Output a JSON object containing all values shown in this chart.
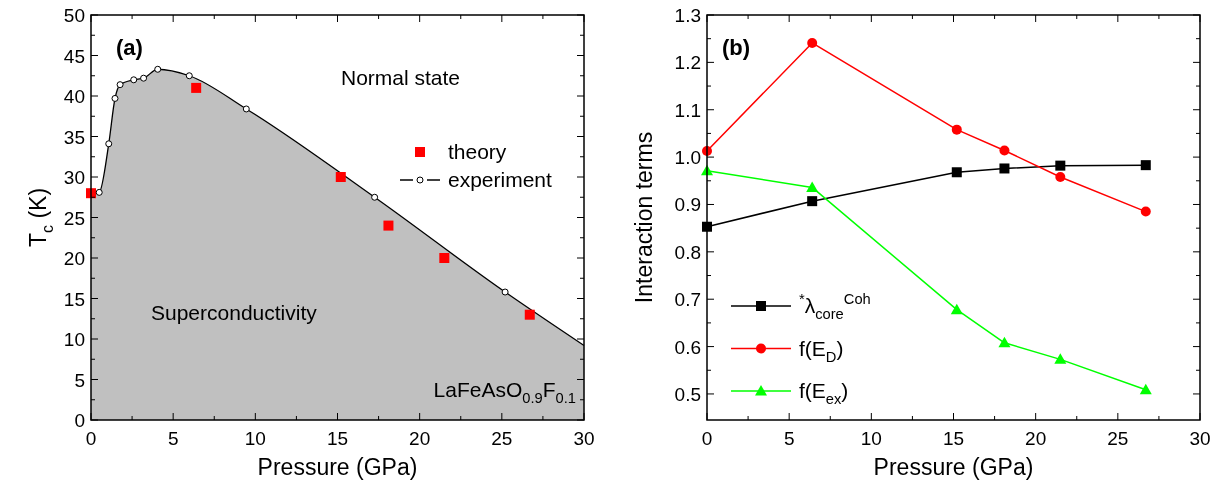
{
  "chart_data": [
    {
      "type": "scatter",
      "ylabel": "T$_{c}$ (K)",
      "xlabel": "Pressure (GPa)",
      "xlim": [
        0,
        30
      ],
      "xticks": [
        0,
        5,
        10,
        15,
        20,
        25,
        30
      ],
      "ylim": [
        0,
        50
      ],
      "yticks": [
        0,
        5,
        10,
        15,
        20,
        25,
        30,
        35,
        40,
        45,
        50
      ],
      "legend": "right",
      "annotations": [
        "(a)",
        "Normal state",
        "Superconductivity",
        "LaFeAsO$_{0.9}$F$_{0.1}$"
      ],
      "series": [
        {
          "type": "area",
          "color": "#c0c0c0",
          "x": [
            0,
            0.5,
            1.08,
            1.46,
            1.77,
            2.6,
            3.2,
            4.06,
            5.98,
            9.45,
            17.26,
            25.2,
            30
          ],
          "values": [
            27.9,
            28.1,
            34.1,
            39.7,
            41.4,
            42.0,
            42.2,
            43.3,
            42.5,
            38.4,
            27.5,
            15.8,
            9.2
          ]
        },
        {
          "name": "theory",
          "marker": "square",
          "color": "#ff0000",
          "x": [
            0,
            6.4,
            15.2,
            18.1,
            21.5,
            26.7
          ],
          "values": [
            28,
            41,
            30,
            24,
            20,
            13
          ]
        },
        {
          "name": "experiment",
          "marker": "circle",
          "color": "#000000",
          "x": [
            0.5,
            1.08,
            1.46,
            1.77,
            2.6,
            3.2,
            4.06,
            5.98,
            9.45,
            17.26,
            25.2
          ],
          "values": [
            28.1,
            34.1,
            39.7,
            41.4,
            42.0,
            42.2,
            43.3,
            42.5,
            38.4,
            27.5,
            15.8
          ]
        }
      ]
    },
    {
      "type": "line",
      "ylabel": "Interaction terms",
      "xlabel": "Pressure (GPa)",
      "xlim": [
        0,
        30
      ],
      "xticks": [
        0,
        5,
        10,
        15,
        20,
        25,
        30
      ],
      "ylim": [
        0.445,
        1.3
      ],
      "yticks": [
        0.5,
        0.6,
        0.7,
        0.8,
        0.9,
        {
          "value": 1,
          "label": "1.0"
        },
        1.1,
        1.2,
        1.3
      ],
      "legend": "bottom left",
      "annotations": [
        "(b)"
      ],
      "x": [
        0,
        6.4,
        15.2,
        18.1,
        21.5,
        26.7
      ],
      "series": [
        {
          "name": "$^{*}$λ$_{core}$$^{Coh}$",
          "marker": "square",
          "color": "#000000",
          "values": [
            0.853,
            0.907,
            0.968,
            0.976,
            0.982,
            0.983
          ]
        },
        {
          "name": "f(E$_{D}$)",
          "marker": "circle",
          "color": "#ff0000",
          "values": [
            1.013,
            1.241,
            1.058,
            1.014,
            0.958,
            0.885
          ]
        },
        {
          "name": "f(E$_{ex}$)",
          "marker": "triangle",
          "color": "#00ff00",
          "values": [
            0.971,
            0.936,
            0.678,
            0.608,
            0.573,
            0.509
          ]
        }
      ]
    }
  ]
}
